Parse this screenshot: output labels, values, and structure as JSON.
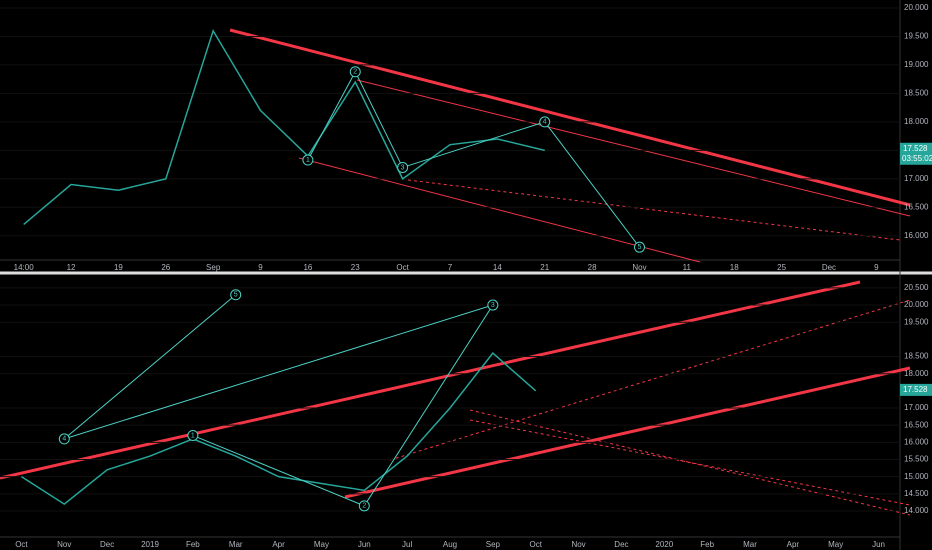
{
  "chart_data": [
    {
      "type": "line",
      "color": "#26a69a",
      "categories": [
        "14:00",
        "12",
        "19",
        "26",
        "Sep",
        "9",
        "16",
        "23",
        "Oct",
        "7",
        "14",
        "21",
        "28",
        "Nov",
        "11",
        "18",
        "25",
        "Dec",
        "9"
      ],
      "values": [
        16.2,
        16.9,
        16.8,
        17.0,
        19.6,
        18.2,
        17.4,
        18.7,
        17.0,
        17.6,
        17.7,
        17.5,
        null,
        null,
        null,
        null,
        null,
        null,
        null
      ],
      "ylim": [
        15.61,
        20.14
      ],
      "yticks": [
        {
          "value": 16,
          "label": "16.000"
        },
        {
          "value": 16.5,
          "label": "16.500"
        },
        {
          "value": 17,
          "label": "17.000"
        },
        {
          "value": 17.5,
          "label": "17.500"
        },
        {
          "value": 18,
          "label": "18.000"
        },
        {
          "value": 18.5,
          "label": "18.500"
        },
        {
          "value": 19,
          "label": "19.000"
        },
        {
          "value": 19.5,
          "label": "19.500"
        },
        {
          "value": 20,
          "label": "20.000"
        }
      ],
      "last_price": 17.528,
      "countdown": "03:55:02",
      "waves": [
        {
          "label": "1",
          "category": "16",
          "value": 17.33
        },
        {
          "label": "2",
          "category": "23",
          "value": 18.88
        },
        {
          "label": "3",
          "category": "Oct",
          "value": 17.2
        },
        {
          "label": "4",
          "category": "21",
          "value": 18.0
        },
        {
          "label": "5",
          "category": "Nov",
          "value": 15.8
        }
      ]
    },
    {
      "type": "line",
      "color": "#26a69a",
      "categories": [
        "Oct",
        "Nov",
        "Dec",
        "2019",
        "Feb",
        "Mar",
        "Apr",
        "May",
        "Jun",
        "Jul",
        "Aug",
        "Sep",
        "Oct",
        "Nov",
        "Dec",
        "2020",
        "Feb",
        "Mar",
        "Apr",
        "May",
        "Jun"
      ],
      "values": [
        15.0,
        14.2,
        15.2,
        15.6,
        16.1,
        15.6,
        15.0,
        14.8,
        14.6,
        15.6,
        17.0,
        18.6,
        17.5,
        null,
        null,
        null,
        null,
        null,
        null,
        null,
        null
      ],
      "ylim": [
        13.3,
        20.73
      ],
      "yticks": [
        {
          "value": 14,
          "label": "14.000"
        },
        {
          "value": 14.5,
          "label": "14.500"
        },
        {
          "value": 15,
          "label": "15.000"
        },
        {
          "value": 15.5,
          "label": "15.500"
        },
        {
          "value": 16,
          "label": "16.000"
        },
        {
          "value": 16.5,
          "label": "16.500"
        },
        {
          "value": 17,
          "label": "17.000"
        },
        {
          "value": 18,
          "label": "18.000"
        },
        {
          "value": 18.5,
          "label": "18.500"
        },
        {
          "value": 19.5,
          "label": "19.500"
        },
        {
          "value": 20,
          "label": "20.000"
        },
        {
          "value": 20.5,
          "label": "20.500"
        }
      ],
      "last_price": 17.528,
      "waves": [
        {
          "label": "1",
          "category": "Feb",
          "value": 16.2
        },
        {
          "label": "2",
          "category": "Jun",
          "value": 14.15
        },
        {
          "label": "3",
          "category": "Sep",
          "value": 20.0
        },
        {
          "label": "4",
          "category": "Nov",
          "value": 16.1
        },
        {
          "label": "5",
          "category": "Mar",
          "value": 20.3
        }
      ]
    }
  ]
}
